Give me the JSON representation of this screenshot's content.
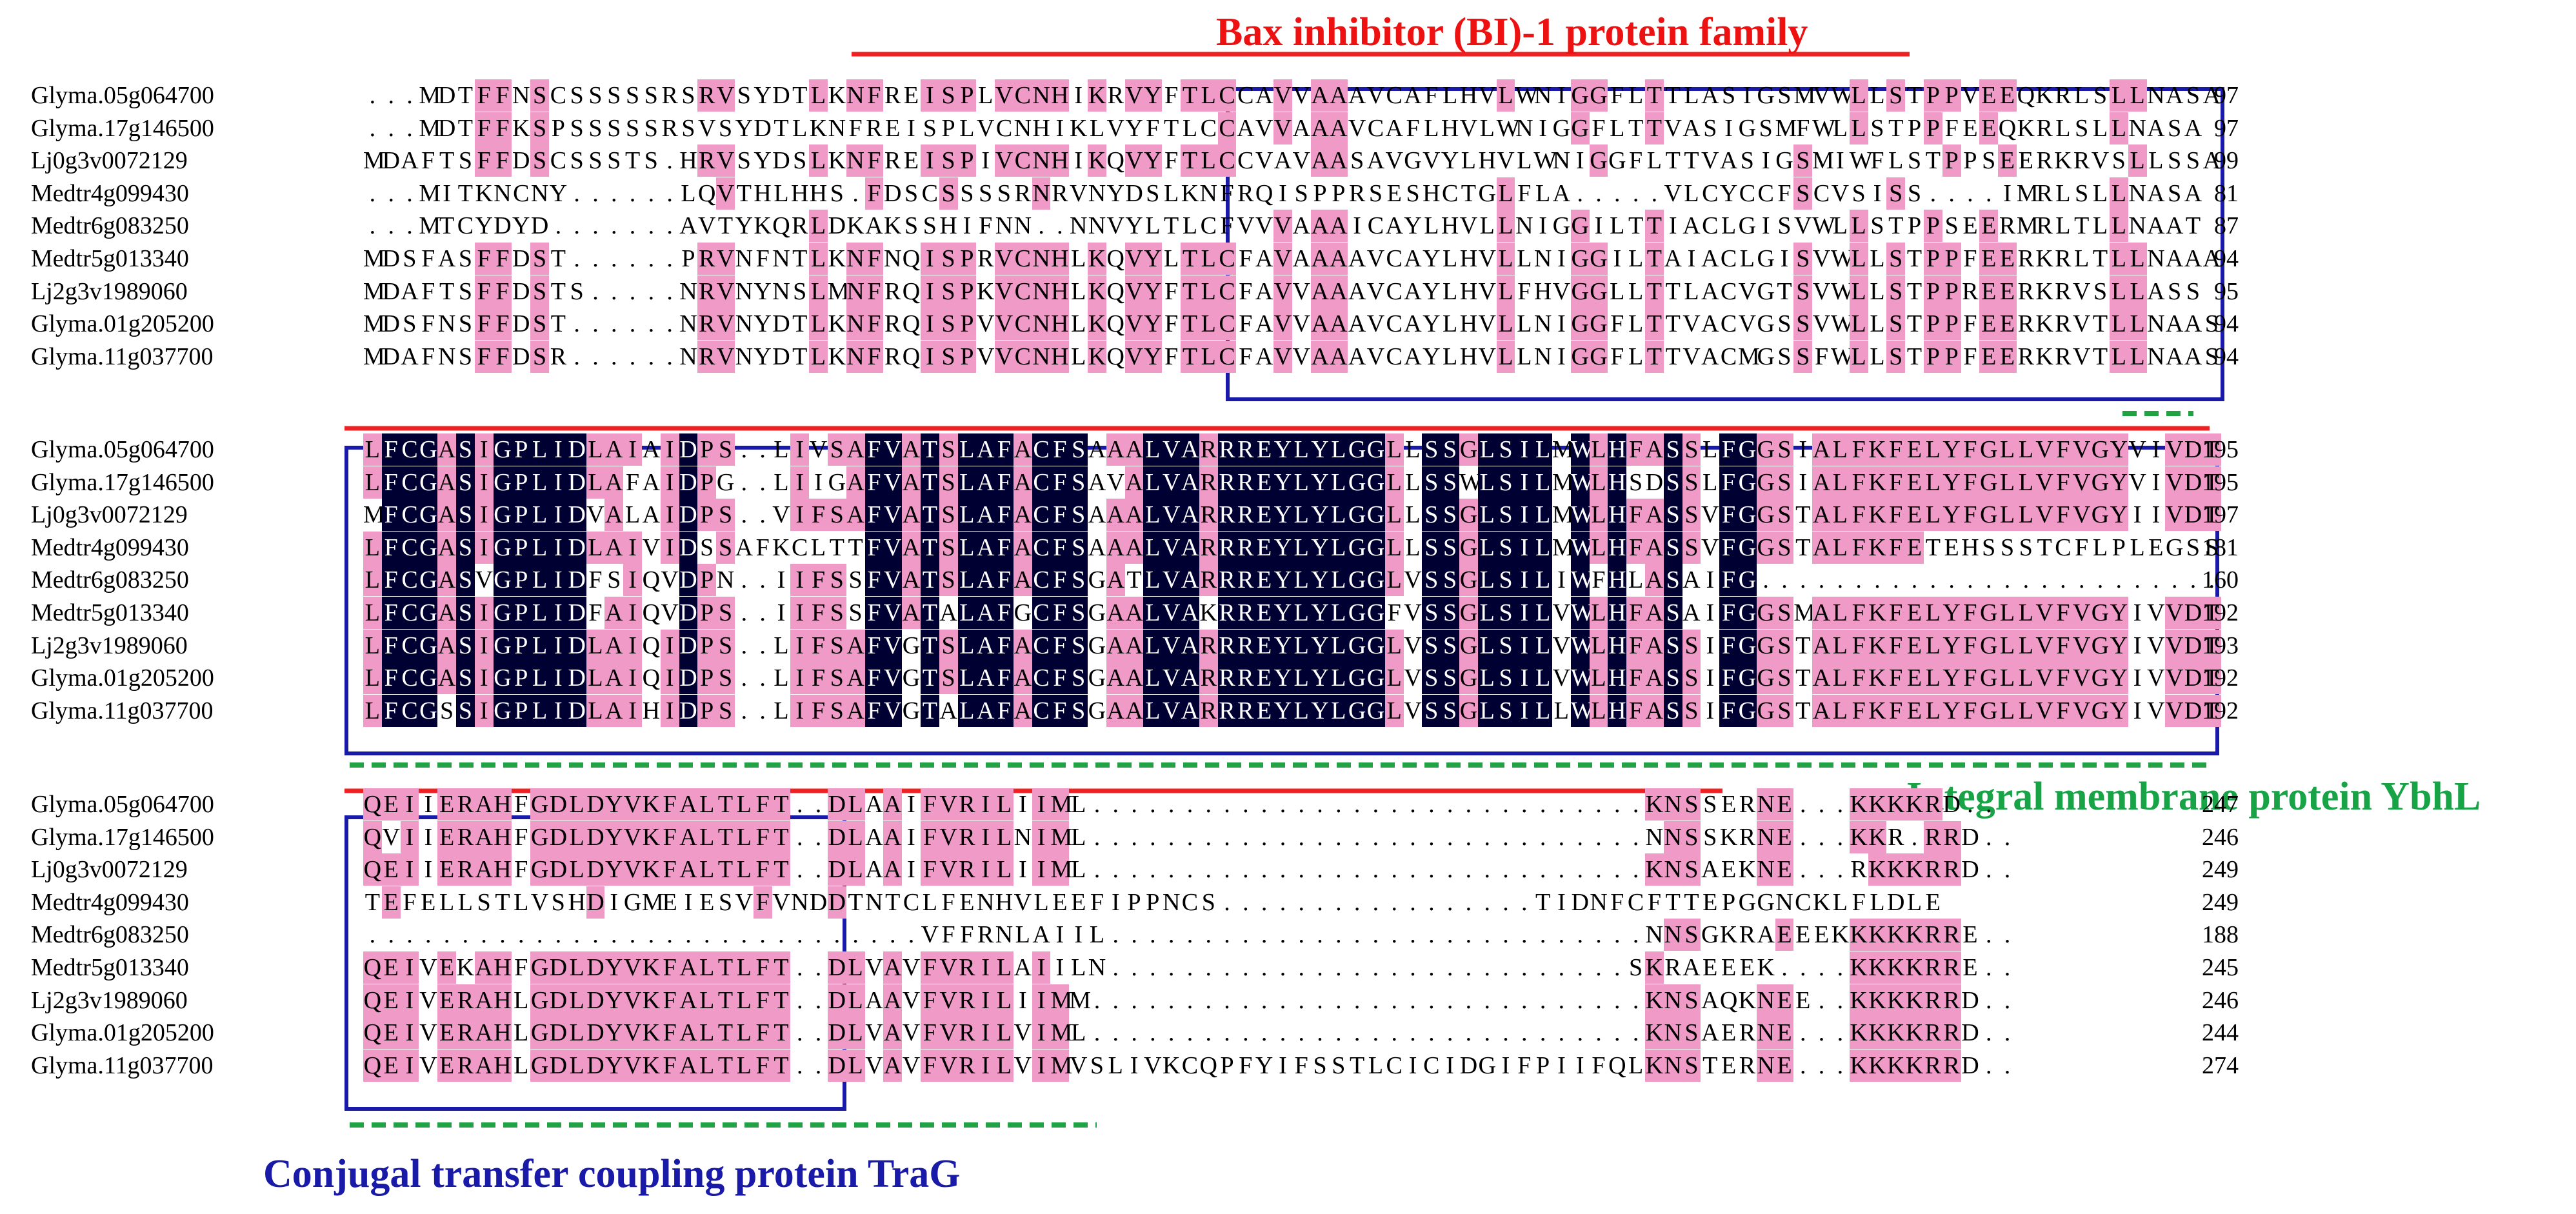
{
  "annotations": {
    "bax_title": "Bax inhibitor (BI)-1 protein family",
    "ybhl_title": "Integral membrane protein YbhL",
    "trag_title": "Conjugal transfer coupling protein TraG"
  },
  "colors": {
    "identical": "#000033",
    "similar": "#f09ac8",
    "bax_line": "#ee2222",
    "box": "#1a1aa8",
    "green_dash": "#22a244",
    "bax_text": "#ee1111",
    "ybhl_text": "#19a347",
    "trag_text": "#1a1aa8"
  },
  "alignment": {
    "names": [
      "Glyma.05g064700",
      "Glyma.17g146500",
      "Lj0g3v0072129",
      "Medtr4g099430",
      "Medtr6g083250",
      "Medtr5g013340",
      "Lj2g3v1989060",
      "Glyma.01g205200",
      "Glyma.11g037700"
    ],
    "blocks": [
      {
        "sequences": [
          "...MDTFFNSCSSSSSRSRVSYDTLKNFREISPLVCNHIKRVYFTLCCAVVAAAVCAFLHVLWNIGGFLTTLASIGSMVWLLSTPPVEEQKRLSLLNASA",
          "...MDTFFKSPSSSSSRSVSYDTLKNFREISPLVCNHIKLVYFTLCCAVVAAAVCAFLHVLWNIGGFLTTVASIGSMFWLLSTPPFEEQKRLSLLNASA",
          "MDAFTSFFDSCSSSTS.HRVSYDSLKNFREISPIVCNHIKQVYFTLCCVAVAASAVGVYLHVLWNIGGFLTTVASIGSMIWFLSTPPSEERKRVSLLSSA",
          "...MITKNCNY......LQVTHLHHS.FDSCSSSSRNRVNYDSLKNFRQISPPRSESHCTGLFLA.....VLCYCCFSCVSISS....IMRLSLLNASA",
          "...MTCYDYD.......AVTYKQRLDKAKSSHIFNN..NNVYLTLCFVVVAAAICAYLHVLLNIGGILTTIACLGISVWLLSTPPSEERMRLTLLNAAT",
          "MDSFASFFDST......PRVNFNTLKNFNQISPRVCNHLKQVYLTLCFAVAAAAVCAYLHVLLNIGGILTAIACLGISVWLLSTPPFEERKRLTLLNAAA",
          "MDAFTSFFDSTS.....NRVNYNSLMNFRQISPKVCNHLKQVYFTLCFAVVAAAVCAYLHVLFHVGGLLTTLACVGTSVWLLSTPPREERKRVSLLASS",
          "MDSFNSFFDST......NRVNYDTLKNFRQISPVVCNHLKQVYFTLCFAVVAAAVCAYLHVLLNIGGFLTTVACVGSSVWLLSTPPFEERKRVTLLNAAS",
          "MDAFNSFFDSR......NRVNYDTLKNFRQISPVVCNHLKQVYFTLCFAVVAAAVCAYLHVLLNIGGFLTTVACMGSSFWLLSTPPFEERKRVTLLNAAS"
        ],
        "numbers": [
          "97",
          "97",
          "99",
          "81",
          "87",
          "94",
          "95",
          "94",
          "94"
        ]
      },
      {
        "sequences": [
          "LFCGASIGPLIDLAIAIDPS..LIVSAFVATSLAFACFSAAALVARRREYLYLGGLLSSGLSILMWLHFASSLFGGSIALFKFELYFGLLVFVGYVIVDT",
          "LFCGASIGPLIDLAFAIDPG..LIIGAFVATSLAFACFSAVALVARRREYLYLGGLLSSWLSILMWLHSDSSLFGGSIALFKFELYFGLLVFVGYVIVDT",
          "MFCGASIGPLIDVALAIDPS..VIFSAFVATSLAFACFSAAALVARRREYLYLGGLLSSGLSILMWLHFASSVFGGSTALFKFELYFGLLVFVGYIIVDT",
          "LFCGASIGPLIDLAIVIDSSAFKCLTTFVATSLAFACFSAAALVARRREYLYLGGLLSSGLSILMWLHFASSVFGGSTALFKFETEHSSSTCFLPLEGSS",
          "LFCGASVGPLIDFSIQVDPN..IIFSSFVATSLAFACFSGATLVARRREYLYLGGLVSSGLSILIWFHLASAIFG.........................",
          "LFCGASIGPLIDFAIQVDPS..IIFSSFVATALAFGCFSGAALVAKRREYLYLGGFVSSGLSILVWLHFASAIFGGSMALFKFELYFGLLVFVGYIVVDT",
          "LFCGASIGPLIDLAIQIDPS..LIFSAFVGTSLAFACFSGAALVARRREYLYLGGLVSSGLSILVWLHFASSIFGGSTALFKFELYFGLLVFVGYIVVDT",
          "LFCGASIGPLIDLAIQIDPS..LIFSAFVGTSLAFACFSGAALVARRREYLYLGGLVSSGLSILVWLHFASSIFGGSTALFKFELYFGLLVFVGYIVVDT",
          "LFCGSSIGPLIDLAIHIDPS..LIFSAFVGTALAFACFSGAALVARRREYLYLGGLVSSGLSILLWLHFASSIFGGSTALFKFELYFGLLVFVGYIVVDT"
        ],
        "numbers": [
          "195",
          "195",
          "197",
          "181",
          "160",
          "192",
          "193",
          "192",
          "192"
        ]
      },
      {
        "sequences": [
          "QEIIERAHFGDLDYVKFALTLFT..DLAAIFVRILIIML..............................KNSSERNE...KKKKRD..",
          "QVIIERAHFGDLDYVKFALTLFT..DLAAIFVRILNIML..............................NNSSKRNE...KKR.RRD..",
          "QEIIERAHFGDLDYVKFALTLFT..DLAAIFVRILIIML..............................KNSAEKNE...RKKKRRD..",
          "TEFELLSTLVSHDIGMEIESVFVNDDTNTCLFENHVLEEFIPPNCS.................TIDNFCFTTEPGGNCKLFLDLE",
          "..............................VFFRNLAIIL.............................NNSGKRAEEEKKKKKRRE..",
          "QEIVEKAHFGDLDYVKFALTLFT..DLVAVFVRILAIILN............................SKRAEEEK....KKKKRRE..",
          "QEIVERAHLGDLDYVKFALTLFT..DLAAVFVRILIIMM..............................KNSAQKNEE..KKKKRRD..",
          "QEIVERAHLGDLDYVKFALTLFT..DLVAVFVRILVIML..............................KNSAERNE...KKKKRRD..",
          "QEIVERAHLGDLDYVKFALTLFT..DLVAVFVRILVIMVSLIVKCQPFYIFSSTLCICIDGIFPIIFQLKNSTERNE...KKKKRRD.."
        ],
        "numbers": [
          "247",
          "246",
          "249",
          "249",
          "188",
          "245",
          "246",
          "244",
          "274"
        ]
      }
    ]
  }
}
